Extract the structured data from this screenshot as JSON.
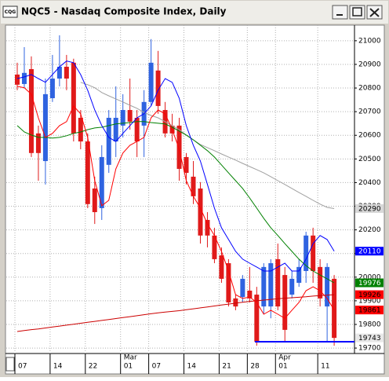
{
  "window": {
    "title": "NQC5 - Nasdaq Composite Index, Daily",
    "icon_text": "CQG"
  },
  "chart_data": {
    "type": "candlestick",
    "categories": [
      "07",
      null,
      null,
      null,
      null,
      "14",
      null,
      null,
      null,
      null,
      "22",
      null,
      null,
      null,
      null,
      "01",
      null,
      null,
      null,
      "07",
      null,
      null,
      null,
      null,
      "14",
      null,
      null,
      null,
      null,
      "21",
      null,
      null,
      null,
      "28",
      null,
      null,
      null,
      "01",
      null,
      null,
      null,
      null,
      null,
      "11",
      null,
      null
    ],
    "months": [
      null,
      null,
      null,
      null,
      null,
      null,
      null,
      null,
      null,
      null,
      null,
      null,
      null,
      null,
      null,
      "Mar",
      null,
      null,
      null,
      null,
      null,
      null,
      null,
      null,
      null,
      null,
      null,
      null,
      null,
      null,
      null,
      null,
      null,
      null,
      null,
      null,
      null,
      "Apr",
      null,
      null,
      null,
      null,
      null,
      null,
      null,
      null
    ],
    "open": [
      20857,
      20817,
      20880,
      20608,
      20491,
      20757,
      20840,
      20890,
      20907,
      20674,
      20574,
      20375,
      20292,
      20475,
      20574,
      20641,
      20707,
      20674,
      20641,
      20741,
      20874,
      20707,
      20641,
      20641,
      20508,
      20425,
      20375,
      20242,
      20176,
      20092,
      20059,
      19910,
      19916,
      19943,
      19926,
      19876,
      19876,
      20076,
      20009,
      19926,
      19976,
      20026,
      20176,
      20043,
      19876,
      19993
    ],
    "high": [
      20907,
      20973,
      20934,
      20641,
      20840,
      20940,
      21023,
      20940,
      20924,
      20707,
      20608,
      20425,
      20558,
      20707,
      20807,
      20774,
      20840,
      20707,
      20791,
      21007,
      20957,
      20741,
      20691,
      20674,
      20525,
      20491,
      20402,
      20275,
      20209,
      20126,
      20076,
      19926,
      20009,
      20043,
      19959,
      20059,
      20076,
      20142,
      20043,
      20026,
      20076,
      20192,
      20209,
      20076,
      20059,
      20009
    ],
    "low": [
      20791,
      20801,
      20508,
      20408,
      20392,
      20741,
      20807,
      20791,
      20574,
      20541,
      20292,
      20225,
      20242,
      20441,
      20508,
      20591,
      20624,
      20508,
      20508,
      20724,
      20691,
      20591,
      20574,
      20408,
      20392,
      20309,
      20142,
      20126,
      20059,
      19976,
      19876,
      19860,
      19893,
      19893,
      19710,
      19843,
      19826,
      19860,
      19727,
      19910,
      19959,
      19976,
      19976,
      19876,
      19727,
      19710
    ],
    "close": [
      20814,
      20864,
      20525,
      20525,
      20774,
      20840,
      20890,
      20840,
      20608,
      20574,
      20309,
      20275,
      20508,
      20674,
      20674,
      20707,
      20658,
      20574,
      20741,
      20907,
      20724,
      20608,
      20608,
      20458,
      20441,
      20342,
      20176,
      20176,
      20076,
      19993,
      19893,
      19876,
      19993,
      19910,
      19727,
      20043,
      20059,
      19876,
      19777,
      19993,
      20043,
      20176,
      20026,
      19910,
      20043,
      19743
    ],
    "up_color": "#2f63e0",
    "down_color": "#e01a1a",
    "overlays": [
      {
        "color": "#a0a0a0",
        "values": [
          null,
          null,
          null,
          null,
          null,
          null,
          null,
          null,
          null,
          20824,
          20814,
          20801,
          20781,
          20767,
          20754,
          20741,
          20727,
          20714,
          20697,
          20684,
          20674,
          20658,
          20641,
          20624,
          20601,
          20581,
          20561,
          20548,
          20535,
          20521,
          20508,
          20495,
          20481,
          20468,
          20455,
          20441,
          20425,
          20408,
          20392,
          20375,
          20358,
          20342,
          20325,
          20309,
          20295,
          20290
        ]
      },
      {
        "color": "#cc0000",
        "values": [
          19770,
          19774,
          19778,
          19781,
          19785,
          19789,
          19793,
          19797,
          19801,
          19805,
          19809,
          19813,
          19817,
          19821,
          19825,
          19829,
          19833,
          19837,
          19841,
          19845,
          19849,
          19852,
          19855,
          19858,
          19862,
          19866,
          19870,
          19874,
          19878,
          19882,
          19886,
          19890,
          19894,
          19897,
          19900,
          19903,
          19906,
          19909,
          19911,
          19913,
          19915,
          19917,
          19920,
          19922,
          19924,
          19926
        ]
      },
      {
        "color": "#008000",
        "values": [
          20641,
          20614,
          20601,
          20591,
          20591,
          20588,
          20591,
          20598,
          20608,
          20614,
          20624,
          20631,
          20634,
          20641,
          20648,
          20651,
          20654,
          20658,
          20658,
          20654,
          20651,
          20648,
          20634,
          20618,
          20601,
          20581,
          20558,
          20535,
          20508,
          20475,
          20441,
          20408,
          20375,
          20335,
          20292,
          20249,
          20209,
          20176,
          20142,
          20109,
          20076,
          20049,
          20026,
          20009,
          19993,
          19976
        ]
      },
      {
        "color": "#ff0000",
        "values": [
          20807,
          20801,
          20774,
          20674,
          20591,
          20608,
          20641,
          20658,
          20724,
          20691,
          20591,
          20408,
          20302,
          20325,
          20458,
          20525,
          20558,
          20574,
          20591,
          20674,
          20707,
          20691,
          20624,
          20541,
          20408,
          20342,
          20292,
          20225,
          20176,
          20109,
          20026,
          19926,
          19910,
          19916,
          19893,
          19843,
          19860,
          19843,
          19826,
          19860,
          19893,
          19943,
          19959,
          19943,
          19910,
          19861
        ]
      },
      {
        "color": "#0000ff",
        "values": [
          20840,
          20847,
          20857,
          20840,
          20824,
          20857,
          20890,
          20914,
          20907,
          20857,
          20791,
          20707,
          20641,
          20591,
          20574,
          20608,
          20641,
          20674,
          20691,
          20724,
          20791,
          20840,
          20824,
          20757,
          20641,
          20558,
          20491,
          20392,
          20292,
          20209,
          20159,
          20109,
          20076,
          20059,
          20043,
          20026,
          20026,
          20043,
          20059,
          20026,
          20026,
          20076,
          20142,
          20176,
          20159,
          20110
        ]
      }
    ],
    "hline": {
      "value": 19727,
      "color": "#0000ff"
    },
    "ylim": [
      19677,
      21066
    ],
    "yticks": [
      19700,
      19800,
      19900,
      20000,
      20100,
      20200,
      20300,
      20400,
      20500,
      20600,
      20700,
      20800,
      20900,
      21000
    ],
    "grid": true,
    "price_boxes": [
      {
        "value": 20290,
        "color": "#d8d8d8",
        "text_color": "#000000"
      },
      {
        "value": 20110,
        "color": "#0000ff",
        "text_color": "#ffffff"
      },
      {
        "value": 19976,
        "color": "#008000",
        "text_color": "#ffffff"
      },
      {
        "value": 19926,
        "color": "#ff0000",
        "text_color": "#000000"
      },
      {
        "value": 19861,
        "color": "#ff0000",
        "text_color": "#000000"
      },
      {
        "value": 19743,
        "color": "#e8e8e8",
        "text_color": "#000000"
      }
    ]
  }
}
